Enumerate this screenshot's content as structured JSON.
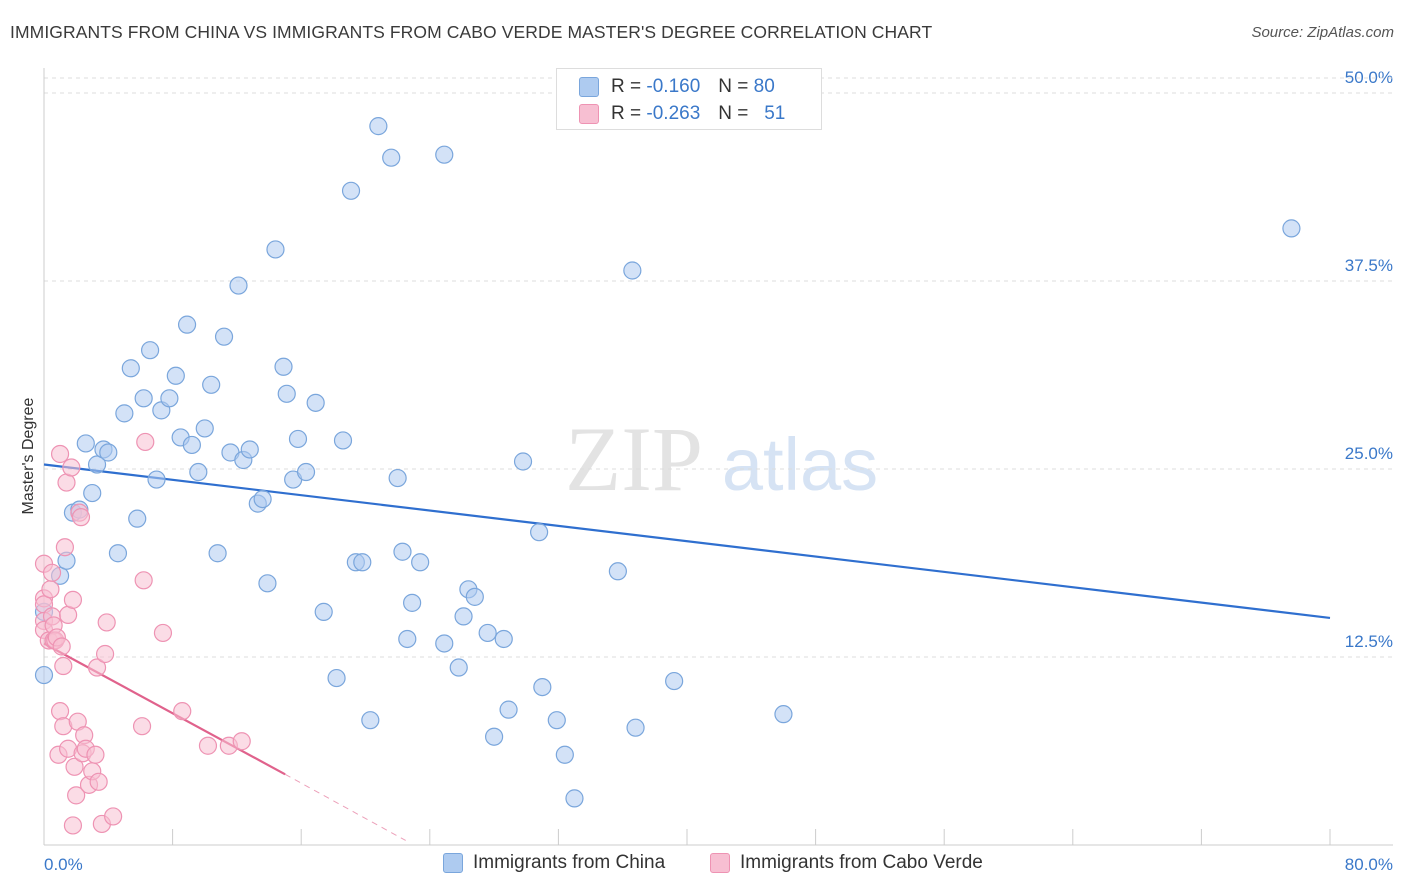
{
  "title": "IMMIGRANTS FROM CHINA VS IMMIGRANTS FROM CABO VERDE MASTER'S DEGREE CORRELATION CHART",
  "source": "Source: ZipAtlas.com",
  "watermark": {
    "zip": "ZIP",
    "atlas": "atlas"
  },
  "stats": {
    "china": {
      "r_label": "R =",
      "r": "-0.160",
      "n_label": "N =",
      "n": "80"
    },
    "cabo": {
      "r_label": "R =",
      "r": "-0.263",
      "n_label": "N =",
      "n": "51"
    }
  },
  "colors": {
    "china_fill": "#aecbf0",
    "china_stroke": "#7aa6dc",
    "china_line": "#2f6fcf",
    "cabo_fill": "#f7bfd2",
    "cabo_stroke": "#ee93b3",
    "cabo_line": "#e0628c",
    "tick_label": "#3a78c9",
    "grid": "#dcdcdc"
  },
  "chart_data": {
    "type": "scatter",
    "title": "IMMIGRANTS FROM CHINA VS IMMIGRANTS FROM CABO VERDE MASTER'S DEGREE CORRELATION CHART",
    "xlabel": "",
    "ylabel": "Master's Degree",
    "xlim": [
      0,
      80
    ],
    "ylim": [
      0,
      51
    ],
    "x_tick_labels": [
      "0.0%",
      "80.0%"
    ],
    "y_ticks": [
      12.5,
      25.0,
      37.5,
      50.0
    ],
    "y_tick_labels": [
      "12.5%",
      "25.0%",
      "37.5%",
      "50.0%"
    ],
    "grid": "horizontal dashed",
    "legend_position": "bottom-center",
    "series": [
      {
        "name": "Immigrants from China",
        "trend": {
          "x": [
            0,
            80
          ],
          "y": [
            25.3,
            15.1
          ]
        },
        "points": [
          [
            0.0,
            11.3
          ],
          [
            0.0,
            15.5
          ],
          [
            1.0,
            17.9
          ],
          [
            1.4,
            18.9
          ],
          [
            1.8,
            22.1
          ],
          [
            2.2,
            22.3
          ],
          [
            2.6,
            26.7
          ],
          [
            3.0,
            23.4
          ],
          [
            3.3,
            25.3
          ],
          [
            3.7,
            26.3
          ],
          [
            4.0,
            26.1
          ],
          [
            4.6,
            19.4
          ],
          [
            5.0,
            28.7
          ],
          [
            5.4,
            31.7
          ],
          [
            5.8,
            21.7
          ],
          [
            6.2,
            29.7
          ],
          [
            6.6,
            32.9
          ],
          [
            7.0,
            24.3
          ],
          [
            7.3,
            28.9
          ],
          [
            7.8,
            29.7
          ],
          [
            8.2,
            31.2
          ],
          [
            8.5,
            27.1
          ],
          [
            8.9,
            34.6
          ],
          [
            9.2,
            26.6
          ],
          [
            9.6,
            24.8
          ],
          [
            10.0,
            27.7
          ],
          [
            10.4,
            30.6
          ],
          [
            10.8,
            19.4
          ],
          [
            11.2,
            33.8
          ],
          [
            11.6,
            26.1
          ],
          [
            12.1,
            37.2
          ],
          [
            12.4,
            25.6
          ],
          [
            12.8,
            26.3
          ],
          [
            13.3,
            22.7
          ],
          [
            13.6,
            23.0
          ],
          [
            13.9,
            17.4
          ],
          [
            14.4,
            39.6
          ],
          [
            14.9,
            31.8
          ],
          [
            15.1,
            30.0
          ],
          [
            15.5,
            24.3
          ],
          [
            15.8,
            27.0
          ],
          [
            16.3,
            24.8
          ],
          [
            16.9,
            29.4
          ],
          [
            17.4,
            15.5
          ],
          [
            18.2,
            11.1
          ],
          [
            18.6,
            26.9
          ],
          [
            19.1,
            43.5
          ],
          [
            19.4,
            18.8
          ],
          [
            19.8,
            18.8
          ],
          [
            20.3,
            8.3
          ],
          [
            20.8,
            47.8
          ],
          [
            21.6,
            45.7
          ],
          [
            22.0,
            24.4
          ],
          [
            22.3,
            19.5
          ],
          [
            22.6,
            13.7
          ],
          [
            22.9,
            16.1
          ],
          [
            23.4,
            18.8
          ],
          [
            24.9,
            45.9
          ],
          [
            24.9,
            13.4
          ],
          [
            25.8,
            11.8
          ],
          [
            26.1,
            15.2
          ],
          [
            26.4,
            17.0
          ],
          [
            26.8,
            16.5
          ],
          [
            27.6,
            14.1
          ],
          [
            28.6,
            13.7
          ],
          [
            28.9,
            9.0
          ],
          [
            28.0,
            7.2
          ],
          [
            29.8,
            25.5
          ],
          [
            30.8,
            20.8
          ],
          [
            31.0,
            10.5
          ],
          [
            31.9,
            8.3
          ],
          [
            32.4,
            6.0
          ],
          [
            33.0,
            3.1
          ],
          [
            35.7,
            18.2
          ],
          [
            36.6,
            38.2
          ],
          [
            36.8,
            7.8
          ],
          [
            39.2,
            10.9
          ],
          [
            46.0,
            8.7
          ],
          [
            77.6,
            41.0
          ],
          [
            33.3,
            48.2
          ]
        ]
      },
      {
        "name": "Immigrants from Cabo Verde",
        "trend": {
          "x": [
            0,
            15
          ],
          "y": [
            13.4,
            4.7
          ]
        },
        "trend_dashed": {
          "x": [
            15,
            22.5
          ],
          "y": [
            4.7,
            0.3
          ]
        },
        "points": [
          [
            0.0,
            18.7
          ],
          [
            0.0,
            16.4
          ],
          [
            0.0,
            16.0
          ],
          [
            0.0,
            14.9
          ],
          [
            0.0,
            14.3
          ],
          [
            0.3,
            13.6
          ],
          [
            0.4,
            17.0
          ],
          [
            0.5,
            15.2
          ],
          [
            0.5,
            18.1
          ],
          [
            0.6,
            13.6
          ],
          [
            0.6,
            14.6
          ],
          [
            0.7,
            13.6
          ],
          [
            0.8,
            13.8
          ],
          [
            0.9,
            6.0
          ],
          [
            1.0,
            26.0
          ],
          [
            1.0,
            8.9
          ],
          [
            1.1,
            13.2
          ],
          [
            1.2,
            7.9
          ],
          [
            1.2,
            11.9
          ],
          [
            1.3,
            19.8
          ],
          [
            1.4,
            24.1
          ],
          [
            1.5,
            15.3
          ],
          [
            1.5,
            6.4
          ],
          [
            1.7,
            25.1
          ],
          [
            1.8,
            16.3
          ],
          [
            1.8,
            1.3
          ],
          [
            1.9,
            5.2
          ],
          [
            2.0,
            3.3
          ],
          [
            2.1,
            8.2
          ],
          [
            2.2,
            22.1
          ],
          [
            2.3,
            21.8
          ],
          [
            2.4,
            6.1
          ],
          [
            2.5,
            7.3
          ],
          [
            2.6,
            6.4
          ],
          [
            2.8,
            4.0
          ],
          [
            3.0,
            4.9
          ],
          [
            3.2,
            6.0
          ],
          [
            3.3,
            11.8
          ],
          [
            3.4,
            4.2
          ],
          [
            3.6,
            1.4
          ],
          [
            3.8,
            12.7
          ],
          [
            3.9,
            14.8
          ],
          [
            4.3,
            1.9
          ],
          [
            6.1,
            7.9
          ],
          [
            6.2,
            17.6
          ],
          [
            6.3,
            26.8
          ],
          [
            7.4,
            14.1
          ],
          [
            8.6,
            8.9
          ],
          [
            10.2,
            6.6
          ],
          [
            11.5,
            6.6
          ],
          [
            12.3,
            6.9
          ]
        ]
      }
    ]
  }
}
